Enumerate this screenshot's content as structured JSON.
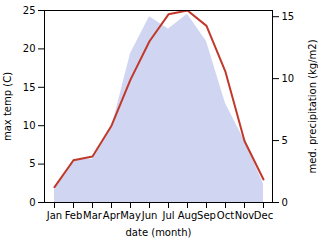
{
  "chart_data": {
    "type": "line",
    "categories": [
      "Jan",
      "Feb",
      "Mar",
      "Apr",
      "May",
      "Jun",
      "Jul",
      "Aug",
      "Sep",
      "Oct",
      "Nov",
      "Dec"
    ],
    "series": [
      {
        "type": "area",
        "axis": "y2",
        "color": "#aab4e8",
        "values": [
          1.0,
          3.5,
          3.5,
          6.0,
          12.0,
          15.0,
          14.0,
          15.2,
          13.0,
          8.0,
          5.0,
          1.5
        ]
      },
      {
        "type": "line",
        "color": "#c0392b",
        "values": [
          2.0,
          5.5,
          6.0,
          10.0,
          16.0,
          21.0,
          24.5,
          25.0,
          23.0,
          17.0,
          8.0,
          3.0
        ]
      }
    ],
    "xlabel": "date (month)",
    "ylabel": "max temp (C)",
    "y2label": "med. precipitation (kg/m2)",
    "ylim": [
      0,
      25
    ],
    "yticks": [
      0,
      5,
      10,
      15,
      20,
      25
    ],
    "y2lim": [
      0,
      15.5
    ],
    "y2ticks": [
      0,
      5,
      10,
      15
    ],
    "grid": false
  }
}
